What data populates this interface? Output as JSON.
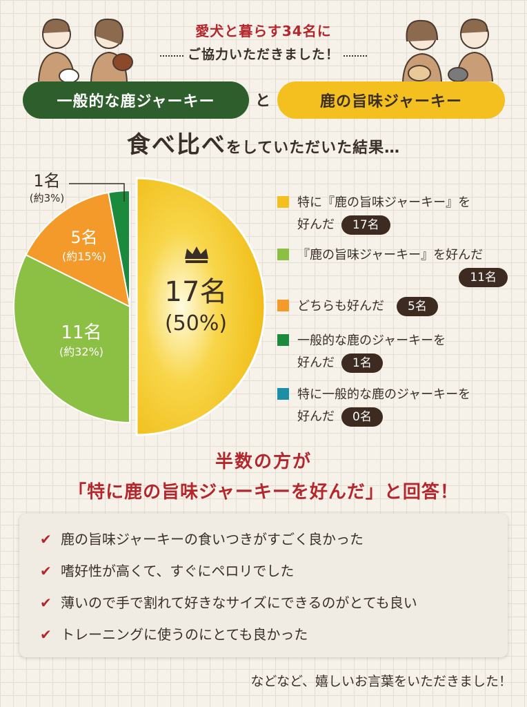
{
  "intro": {
    "line1": "愛犬と暮らす34名に",
    "line2": "ご協力いただきました！"
  },
  "products": {
    "generic": "一般的な鹿ジャーキー",
    "connector": "と",
    "umami": "鹿の旨味ジャーキー"
  },
  "result_heading": {
    "big": "食べ比べ",
    "small": "をしていただいた結果…"
  },
  "colors": {
    "yellow": "#f4c020",
    "light_green": "#8cc044",
    "orange": "#f39a2a",
    "dark_green": "#1c8a3c",
    "teal": "#1e8ea6",
    "red": "#b3262c",
    "dark": "#3d2b22"
  },
  "chart_data": {
    "type": "pie",
    "slices": [
      {
        "label": "特に『鹿の旨味ジャーキー』を好んだ",
        "value": 17,
        "percent": "50%",
        "color": "#f4c020"
      },
      {
        "label": "『鹿の旨味ジャーキー』を好んだ",
        "value": 11,
        "percent": "約32%",
        "color": "#8cc044"
      },
      {
        "label": "どちらも好んだ",
        "value": 5,
        "percent": "約15%",
        "color": "#f39a2a"
      },
      {
        "label": "一般的な鹿のジャーキーを好んだ",
        "value": 1,
        "percent": "約3%",
        "color": "#1c8a3c"
      },
      {
        "label": "特に一般的な鹿のジャーキーを好んだ",
        "value": 0,
        "percent": "",
        "color": "#1e8ea6"
      }
    ]
  },
  "pie_labels": {
    "s17": {
      "count": "17名",
      "pct": "(50%)"
    },
    "s11": {
      "count": "11名",
      "pct": "(約32%)"
    },
    "s5": {
      "count": "5名",
      "pct": "(約15%)"
    },
    "s1": {
      "count": "1名",
      "pct": "(約3%)"
    }
  },
  "legend": [
    {
      "line1": "特に『鹿の旨味ジャーキー』を",
      "line2": "好んだ",
      "count": "17名"
    },
    {
      "line1": "『鹿の旨味ジャーキー』を好んだ",
      "line2": "",
      "count": "11名"
    },
    {
      "line1": "どちらも好んだ",
      "line2": "",
      "count": "5名"
    },
    {
      "line1": "一般的な鹿のジャーキーを",
      "line2": "好んだ",
      "count": "1名"
    },
    {
      "line1": "特に一般的な鹿のジャーキーを",
      "line2": "好んだ",
      "count": "0名"
    }
  ],
  "headline": {
    "line1": "半数の方が",
    "line2": "「特に鹿の旨味ジャーキーを好んだ」と回答！"
  },
  "comments": [
    "鹿の旨味ジャーキーの食いつきがすごく良かった",
    "嗜好性が高くて、すぐにペロリでした",
    "薄いので手で割れて好きなサイズにできるのがとても良い",
    "トレーニングに使うのにとても良かった"
  ],
  "footer": "などなど、嬉しいお言葉をいただきました！"
}
